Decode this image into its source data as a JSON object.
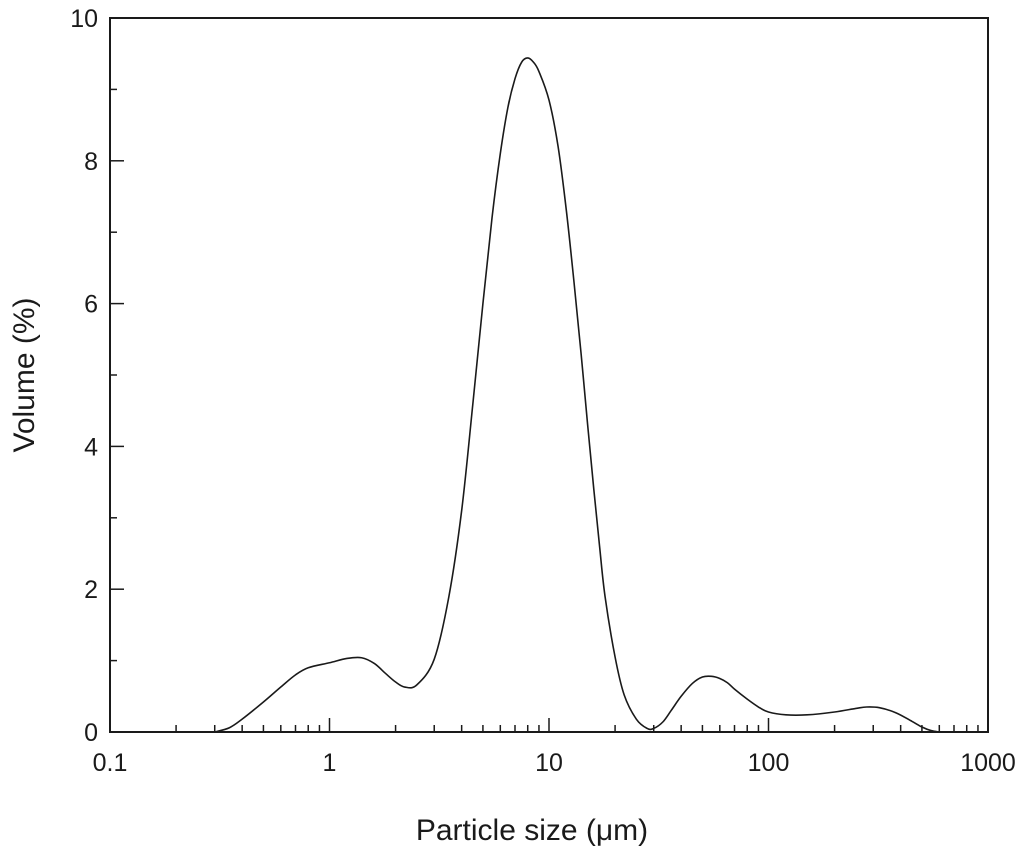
{
  "chart_data": {
    "type": "line",
    "title": "",
    "xlabel": "Particle size (μm)",
    "ylabel": "Volume (%)",
    "xscale": "log",
    "xlim": [
      0.1,
      1000
    ],
    "ylim": [
      0,
      10
    ],
    "grid": false,
    "legend": "none",
    "x_ticks": [
      0.1,
      1,
      10,
      100,
      1000
    ],
    "x_tick_labels": [
      "0.1",
      "1",
      "10",
      "100",
      "1000"
    ],
    "y_ticks": [
      0,
      2,
      4,
      6,
      8,
      10
    ],
    "y_tick_labels": [
      "0",
      "2",
      "4",
      "6",
      "8",
      "10"
    ],
    "series": [
      {
        "color": "#1a1a1a",
        "x": [
          0.3,
          0.35,
          0.4,
          0.5,
          0.6,
          0.7,
          0.8,
          1.0,
          1.2,
          1.4,
          1.6,
          1.8,
          2.0,
          2.2,
          2.5,
          3.0,
          3.5,
          4.0,
          4.5,
          5.0,
          5.5,
          6.0,
          6.5,
          7.0,
          7.5,
          8.0,
          8.5,
          9.0,
          10.0,
          11.0,
          12.0,
          13.0,
          14.0,
          15.0,
          16.0,
          17.0,
          18.0,
          20.0,
          22.0,
          25.0,
          28.0,
          30.0,
          33.0,
          36.0,
          40.0,
          45.0,
          50.0,
          55.0,
          60.0,
          65.0,
          70.0,
          80.0,
          90.0,
          100.0,
          120.0,
          150.0,
          200.0,
          250.0,
          280.0,
          320.0,
          380.0,
          450.0,
          500.0,
          550.0,
          600.0
        ],
        "values": [
          0.0,
          0.06,
          0.18,
          0.42,
          0.63,
          0.8,
          0.9,
          0.97,
          1.03,
          1.04,
          0.96,
          0.82,
          0.7,
          0.63,
          0.66,
          1.02,
          1.9,
          3.1,
          4.6,
          6.0,
          7.2,
          8.1,
          8.75,
          9.15,
          9.38,
          9.44,
          9.38,
          9.25,
          8.85,
          8.2,
          7.3,
          6.3,
          5.3,
          4.3,
          3.4,
          2.6,
          1.9,
          1.05,
          0.52,
          0.18,
          0.05,
          0.05,
          0.14,
          0.3,
          0.5,
          0.68,
          0.77,
          0.78,
          0.75,
          0.69,
          0.6,
          0.46,
          0.35,
          0.28,
          0.24,
          0.24,
          0.28,
          0.33,
          0.35,
          0.34,
          0.27,
          0.15,
          0.07,
          0.02,
          0.0
        ]
      }
    ]
  }
}
